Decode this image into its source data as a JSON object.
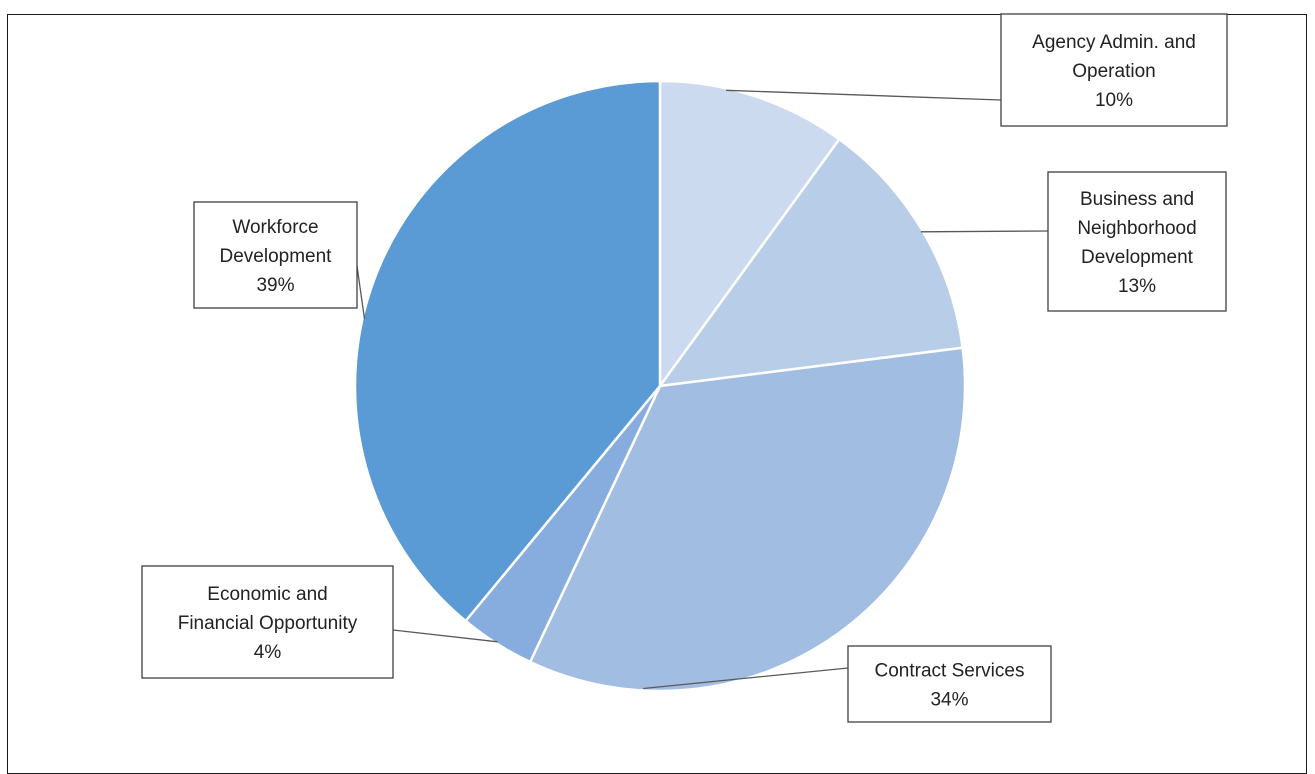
{
  "header": {
    "caption": ""
  },
  "chart_data": {
    "type": "pie",
    "title": "",
    "categories": [
      "Agency Admin. and Operation",
      "Business and Neighborhood Development",
      "Contract Services",
      "Economic and Financial Opportunity",
      "Workforce Development"
    ],
    "values": [
      10,
      13,
      34,
      4,
      39
    ],
    "labels": [
      {
        "lines": [
          "Agency Admin. and",
          "Operation"
        ],
        "percent": "10%"
      },
      {
        "lines": [
          "Business and",
          "Neighborhood",
          "Development"
        ],
        "percent": "13%"
      },
      {
        "lines": [
          "Contract Services"
        ],
        "percent": "34%"
      },
      {
        "lines": [
          "Economic and",
          "Financial Opportunity"
        ],
        "percent": "4%"
      },
      {
        "lines": [
          "Workforce",
          "Development"
        ],
        "percent": "39%"
      }
    ],
    "colors": [
      "#cbdaee",
      "#b8cde8",
      "#a2bde2",
      "#86addd",
      "#5b9bd5"
    ],
    "start_angle_deg": 0,
    "direction": "clockwise",
    "legend": "none",
    "data_labels": "callouts"
  }
}
